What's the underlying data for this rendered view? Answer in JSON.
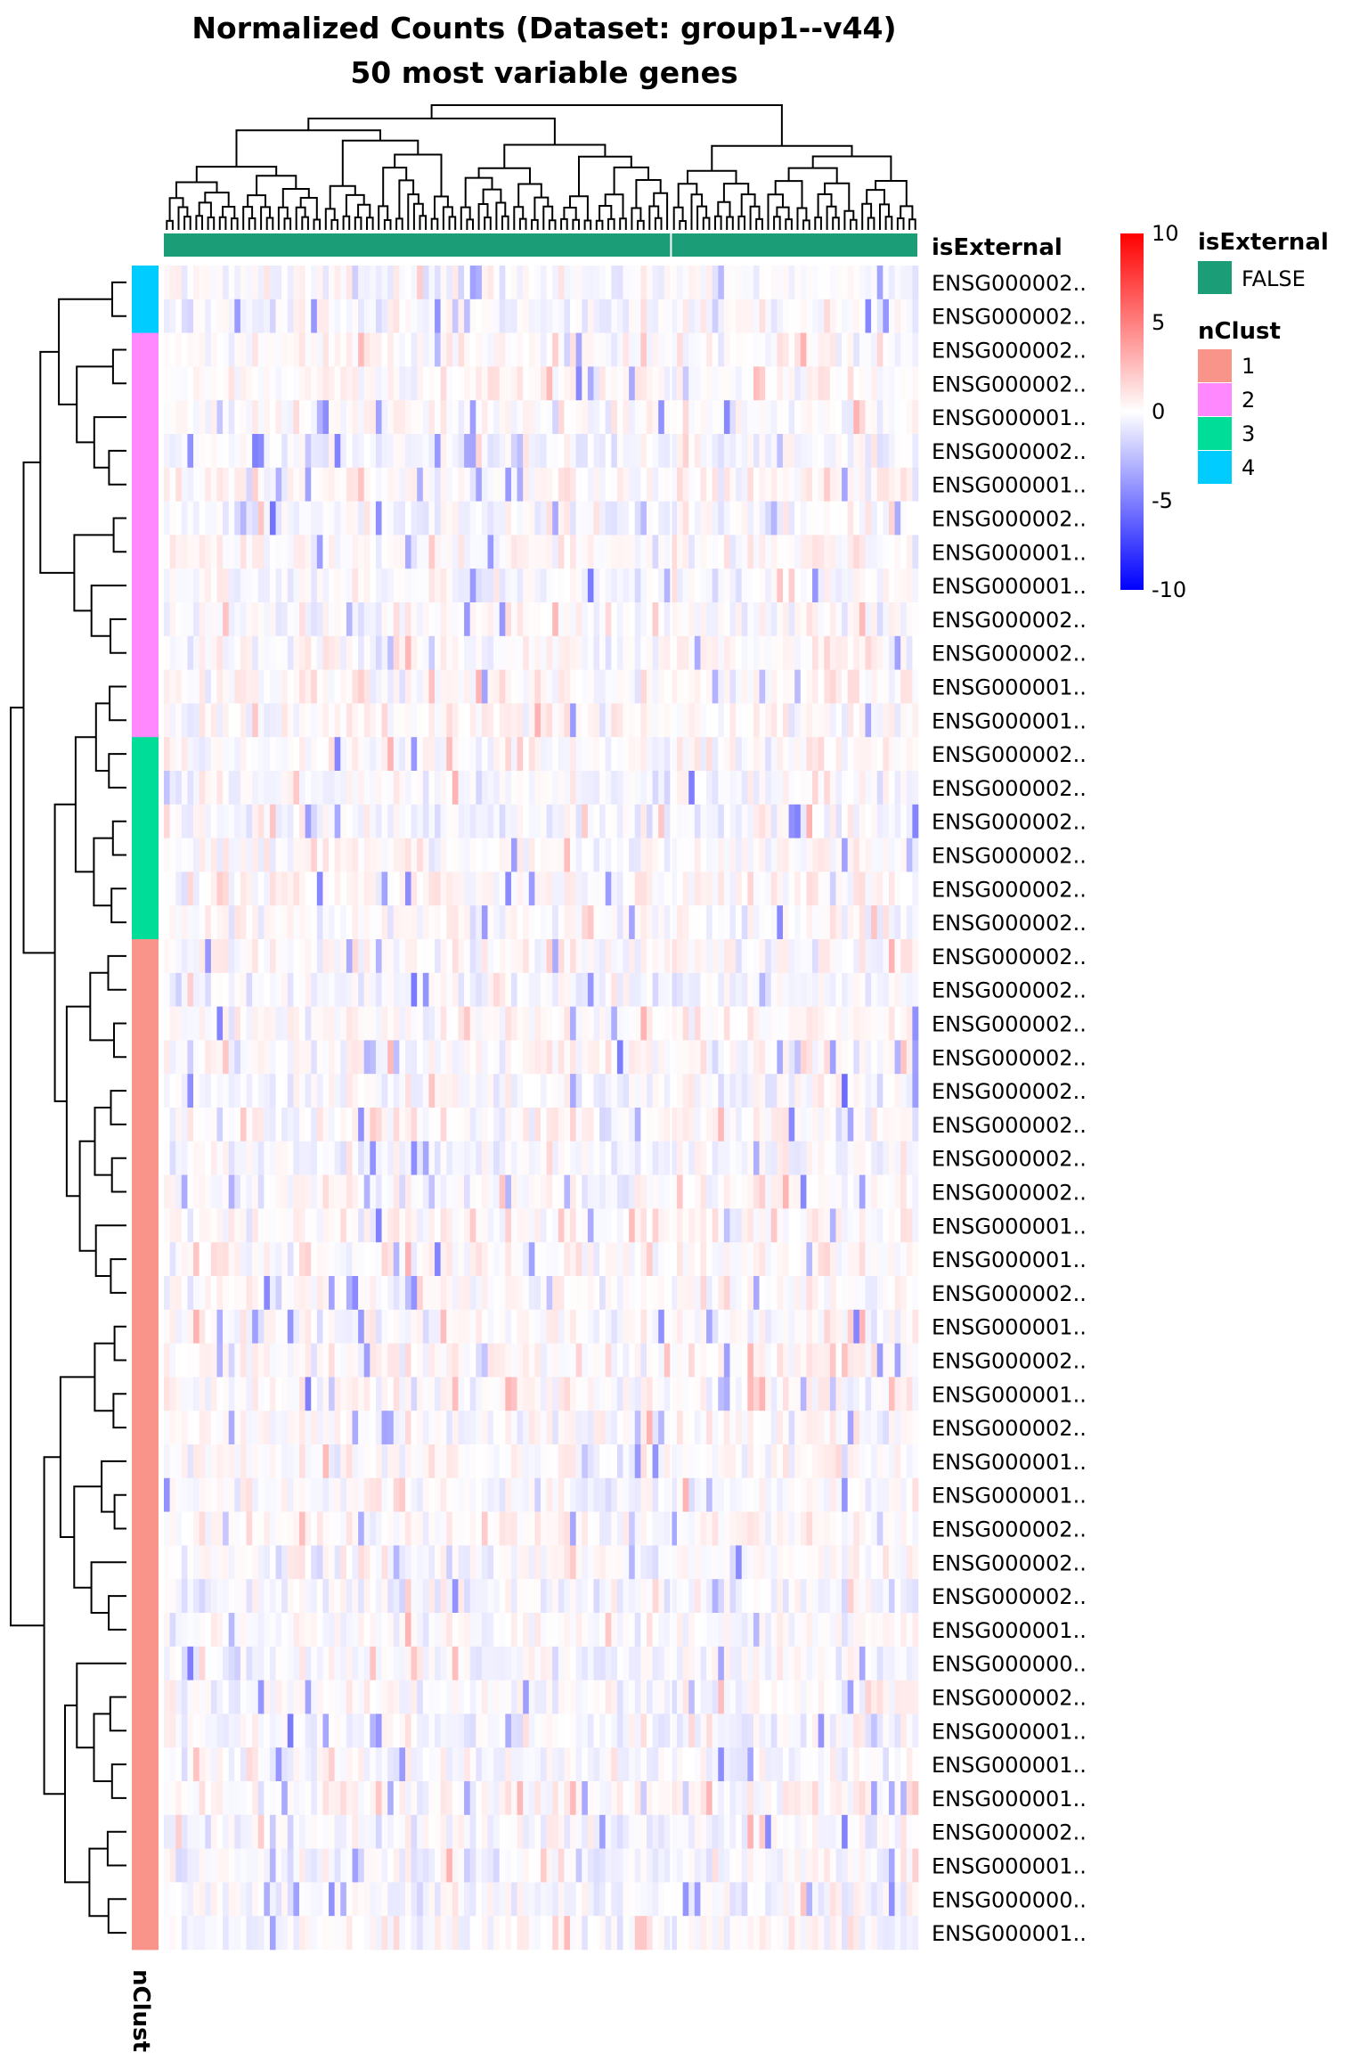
{
  "chart_data": {
    "type": "heatmap",
    "title": "Normalized Counts (Dataset: group1--v44)",
    "subtitle": "50 most variable genes",
    "row_labels": [
      "ENSG000002..",
      "ENSG000002..",
      "ENSG000002..",
      "ENSG000002..",
      "ENSG000001..",
      "ENSG000002..",
      "ENSG000001..",
      "ENSG000002..",
      "ENSG000001..",
      "ENSG000001..",
      "ENSG000002..",
      "ENSG000002..",
      "ENSG000001..",
      "ENSG000001..",
      "ENSG000002..",
      "ENSG000002..",
      "ENSG000002..",
      "ENSG000002..",
      "ENSG000002..",
      "ENSG000002..",
      "ENSG000002..",
      "ENSG000002..",
      "ENSG000002..",
      "ENSG000002..",
      "ENSG000002..",
      "ENSG000002..",
      "ENSG000002..",
      "ENSG000002..",
      "ENSG000001..",
      "ENSG000001..",
      "ENSG000002..",
      "ENSG000001..",
      "ENSG000002..",
      "ENSG000001..",
      "ENSG000002..",
      "ENSG000001..",
      "ENSG000001..",
      "ENSG000002..",
      "ENSG000002..",
      "ENSG000002..",
      "ENSG000001..",
      "ENSG000000..",
      "ENSG000002..",
      "ENSG000001..",
      "ENSG000001..",
      "ENSG000001..",
      "ENSG000002..",
      "ENSG000001..",
      "ENSG000000..",
      "ENSG000001.."
    ],
    "row_annotation": {
      "name": "nClust",
      "values": [
        4,
        4,
        2,
        2,
        2,
        2,
        2,
        2,
        2,
        2,
        2,
        2,
        2,
        2,
        3,
        3,
        3,
        3,
        3,
        3,
        1,
        1,
        1,
        1,
        1,
        1,
        1,
        1,
        1,
        1,
        1,
        1,
        1,
        1,
        1,
        1,
        1,
        1,
        1,
        1,
        1,
        1,
        1,
        1,
        1,
        1,
        1,
        1,
        1,
        1
      ]
    },
    "column_annotation": {
      "name": "isExternal",
      "value": "FALSE"
    },
    "n_columns": 128,
    "column_split_after": 86,
    "color_scale": {
      "min": -10,
      "max": 10,
      "low_color": "#0000ff",
      "mid_color": "#ffffff",
      "high_color": "#ff0000",
      "ticks": [
        "10",
        "5",
        "0",
        "-5",
        "-10"
      ]
    },
    "legend": {
      "isExternal_title": "isExternal",
      "isExternal_items": [
        {
          "label": "FALSE",
          "color": "#1b9e77"
        }
      ],
      "nClust_title": "nClust",
      "nClust_items": [
        {
          "label": "1",
          "color": "#f8948a"
        },
        {
          "label": "2",
          "color": "#ff88ff"
        },
        {
          "label": "3",
          "color": "#00dd99"
        },
        {
          "label": "4",
          "color": "#00ccff"
        }
      ]
    },
    "value_range_observed": [
      -6,
      3
    ]
  }
}
